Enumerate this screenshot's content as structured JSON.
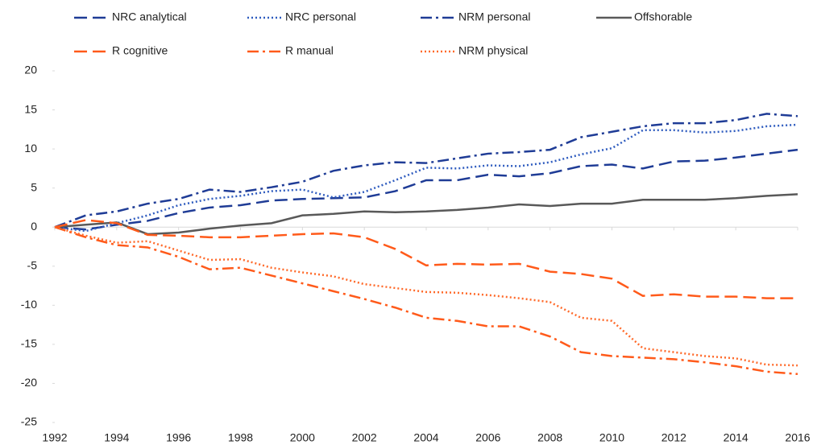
{
  "chart_data": {
    "type": "line",
    "x": [
      1992,
      1993,
      1994,
      1995,
      1996,
      1997,
      1998,
      1999,
      2000,
      2001,
      2002,
      2003,
      2004,
      2005,
      2006,
      2007,
      2008,
      2009,
      2010,
      2011,
      2012,
      2013,
      2014,
      2015,
      2016
    ],
    "xlim": [
      1992,
      2016
    ],
    "xticks": [
      1992,
      1994,
      1996,
      1998,
      2000,
      2002,
      2004,
      2006,
      2008,
      2010,
      2012,
      2014,
      2016
    ],
    "ylim": [
      -25,
      20
    ],
    "yticks": [
      -25,
      -20,
      -15,
      -10,
      -5,
      0,
      5,
      10,
      15,
      20
    ],
    "series": [
      {
        "name": "NRC analytical",
        "color": "#1f3c96",
        "dash": "longdash",
        "values": [
          0,
          -0.3,
          0.3,
          0.8,
          1.8,
          2.5,
          2.8,
          3.4,
          3.6,
          3.7,
          3.8,
          4.6,
          6.0,
          6.0,
          6.7,
          6.5,
          6.9,
          7.8,
          8.0,
          7.5,
          8.4,
          8.5,
          8.9,
          9.4,
          9.9
        ]
      },
      {
        "name": "NRC personal",
        "color": "#2f5cbf",
        "dash": "dot",
        "values": [
          0,
          -0.5,
          0.5,
          1.5,
          2.8,
          3.6,
          4.0,
          4.6,
          4.8,
          3.8,
          4.5,
          6.0,
          7.6,
          7.5,
          7.9,
          7.8,
          8.3,
          9.3,
          10.1,
          12.4,
          12.4,
          12.1,
          12.3,
          12.9,
          13.1
        ]
      },
      {
        "name": "NRM personal",
        "color": "#1f3c96",
        "dash": "dashdot",
        "values": [
          0,
          1.5,
          2.0,
          3.0,
          3.6,
          4.8,
          4.5,
          5.1,
          5.8,
          7.2,
          7.9,
          8.3,
          8.2,
          8.8,
          9.4,
          9.6,
          9.9,
          11.5,
          12.2,
          12.9,
          13.3,
          13.3,
          13.7,
          14.5,
          14.2
        ]
      },
      {
        "name": "Offshorable",
        "color": "#595959",
        "dash": "solid",
        "values": [
          0,
          0.3,
          0.6,
          -0.9,
          -0.7,
          -0.2,
          0.2,
          0.5,
          1.5,
          1.7,
          2.0,
          1.9,
          2.0,
          2.2,
          2.5,
          2.9,
          2.7,
          3.0,
          3.0,
          3.5,
          3.5,
          3.5,
          3.7,
          4.0,
          4.2
        ]
      },
      {
        "name": "R cognitive",
        "color": "#ff5a1a",
        "dash": "longdash",
        "values": [
          0,
          0.9,
          0.5,
          -1.0,
          -1.1,
          -1.3,
          -1.3,
          -1.1,
          -0.9,
          -0.8,
          -1.3,
          -2.8,
          -4.9,
          -4.7,
          -4.8,
          -4.7,
          -5.7,
          -6.0,
          -6.6,
          -8.8,
          -8.6,
          -8.9,
          -8.9,
          -9.1,
          -9.1
        ]
      },
      {
        "name": "R manual",
        "color": "#ff5a1a",
        "dash": "dashdot",
        "values": [
          0,
          -1.3,
          -2.3,
          -2.6,
          -3.8,
          -5.4,
          -5.2,
          -6.2,
          -7.2,
          -8.2,
          -9.2,
          -10.3,
          -11.6,
          -12.0,
          -12.7,
          -12.7,
          -14.0,
          -16.0,
          -16.5,
          -16.7,
          -16.9,
          -17.3,
          -17.8,
          -18.5,
          -18.8
        ]
      },
      {
        "name": "NRM physical",
        "color": "#ff6a2a",
        "dash": "dot",
        "values": [
          0,
          -1.1,
          -2.0,
          -1.8,
          -3.0,
          -4.2,
          -4.1,
          -5.2,
          -5.8,
          -6.3,
          -7.3,
          -7.8,
          -8.3,
          -8.4,
          -8.7,
          -9.1,
          -9.6,
          -11.6,
          -12.0,
          -15.5,
          -16.0,
          -16.5,
          -16.8,
          -17.6,
          -17.7
        ]
      }
    ]
  }
}
